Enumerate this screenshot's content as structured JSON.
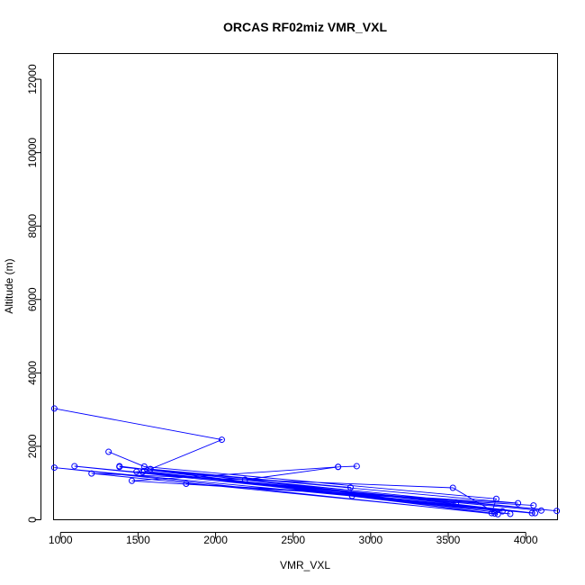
{
  "chart_data": {
    "type": "scatter",
    "title": "ORCAS RF02miz VMR_VXL",
    "xlabel": "VMR_VXL",
    "ylabel": "Altitude (m)",
    "xlim": [
      955,
      4205
    ],
    "ylim": [
      0,
      12700
    ],
    "xticks": [
      1000,
      1500,
      2000,
      2500,
      3000,
      3500,
      4000
    ],
    "yticks": [
      0,
      2000,
      4000,
      6000,
      8000,
      10000,
      12000
    ],
    "grid": false,
    "series": [
      {
        "color": "#0000ff",
        "marker": "open-circle",
        "connected": true,
        "points": [
          {
            "x": 960,
            "y": 3030
          },
          {
            "x": 2040,
            "y": 2180
          },
          {
            "x": 1580,
            "y": 1380
          },
          {
            "x": 1310,
            "y": 1850
          },
          {
            "x": 1540,
            "y": 1450
          },
          {
            "x": 3810,
            "y": 570
          },
          {
            "x": 3780,
            "y": 180
          },
          {
            "x": 1380,
            "y": 1460
          },
          {
            "x": 3900,
            "y": 160
          },
          {
            "x": 1540,
            "y": 1330
          },
          {
            "x": 3800,
            "y": 170
          },
          {
            "x": 1200,
            "y": 1260
          },
          {
            "x": 3530,
            "y": 870
          },
          {
            "x": 3820,
            "y": 150
          },
          {
            "x": 960,
            "y": 1420
          },
          {
            "x": 4040,
            "y": 180
          },
          {
            "x": 1090,
            "y": 1460
          },
          {
            "x": 4100,
            "y": 250
          },
          {
            "x": 1490,
            "y": 1310
          },
          {
            "x": 3550,
            "y": 450
          },
          {
            "x": 2190,
            "y": 1090
          },
          {
            "x": 2790,
            "y": 1440
          },
          {
            "x": 2910,
            "y": 1460
          },
          {
            "x": 2790,
            "y": 1440
          },
          {
            "x": 1460,
            "y": 1060
          },
          {
            "x": 4050,
            "y": 390
          },
          {
            "x": 1810,
            "y": 980
          },
          {
            "x": 3950,
            "y": 450
          },
          {
            "x": 1380,
            "y": 1440
          },
          {
            "x": 4200,
            "y": 240
          },
          {
            "x": 1530,
            "y": 1300
          },
          {
            "x": 4060,
            "y": 180
          },
          {
            "x": 1580,
            "y": 1380
          },
          {
            "x": 2870,
            "y": 880
          },
          {
            "x": 2880,
            "y": 650
          },
          {
            "x": 3850,
            "y": 230
          }
        ]
      }
    ]
  }
}
